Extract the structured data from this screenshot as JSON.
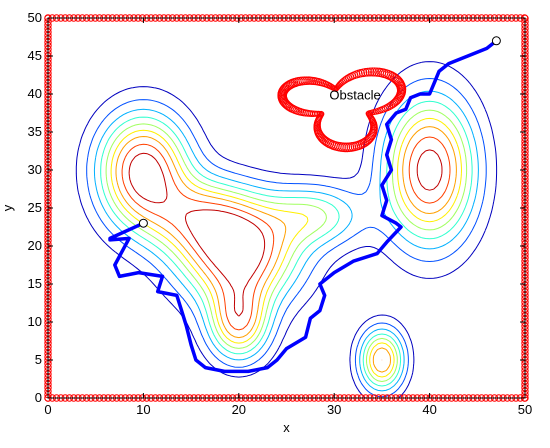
{
  "chart_data": {
    "type": "line",
    "title": "",
    "xlabel": "x",
    "ylabel": "y",
    "xlim": [
      0,
      50
    ],
    "ylim": [
      0,
      50
    ],
    "xticks": [
      0,
      10,
      20,
      30,
      40,
      50
    ],
    "yticks": [
      0,
      5,
      10,
      15,
      20,
      25,
      30,
      35,
      40,
      45,
      50
    ],
    "grid": false,
    "annotations": [
      {
        "text": "Obstacle",
        "x": 29.5,
        "y": 39.8
      }
    ],
    "colors": {
      "path": "#0000ff",
      "border": "#ff0000",
      "obstacle": "#ff0000"
    },
    "path": {
      "start": [
        10,
        23
      ],
      "goal": [
        47,
        47
      ],
      "points": [
        [
          10,
          23
        ],
        [
          6.5,
          21
        ],
        [
          6.5,
          20.8
        ],
        [
          8.5,
          21
        ],
        [
          7,
          17.5
        ],
        [
          7.5,
          16
        ],
        [
          9.5,
          16.5
        ],
        [
          12,
          16
        ],
        [
          11.5,
          14
        ],
        [
          13.5,
          13.5
        ],
        [
          14,
          11.5
        ],
        [
          14.5,
          9.5
        ],
        [
          15,
          7
        ],
        [
          15.5,
          5
        ],
        [
          16.5,
          4
        ],
        [
          18.5,
          3.5
        ],
        [
          21,
          3.5
        ],
        [
          23,
          4
        ],
        [
          24,
          5
        ],
        [
          25,
          6.5
        ],
        [
          27,
          8
        ],
        [
          27.5,
          10.5
        ],
        [
          28.5,
          11.5
        ],
        [
          29,
          13.5
        ],
        [
          28.5,
          15
        ],
        [
          30,
          16.5
        ],
        [
          32,
          18
        ],
        [
          34.5,
          19
        ],
        [
          35.5,
          20.5
        ],
        [
          37,
          22.5
        ],
        [
          36.5,
          23
        ],
        [
          35,
          24
        ],
        [
          35.5,
          26
        ],
        [
          35,
          28
        ],
        [
          36,
          30
        ],
        [
          35.5,
          32
        ],
        [
          36,
          34
        ],
        [
          35.5,
          36
        ],
        [
          36.5,
          37.5
        ],
        [
          37.5,
          38
        ],
        [
          38,
          39.5
        ],
        [
          39,
          40
        ],
        [
          40,
          40
        ],
        [
          40.5,
          41.5
        ],
        [
          41,
          43
        ],
        [
          42,
          44
        ],
        [
          44,
          45
        ],
        [
          46,
          46
        ],
        [
          47,
          47
        ]
      ]
    },
    "contours": {
      "colormap": [
        "#0000bf",
        "#0050ff",
        "#00b0ff",
        "#30ffcf",
        "#a0ff5f",
        "#ffef00",
        "#ff9f00",
        "#ff4000",
        "#c00000"
      ]
    },
    "obstacle_shape": "lobed ring of small circles",
    "border_shape": "rectangle of small circles along x = 0, x = 50, y = 0 and y = 50"
  }
}
